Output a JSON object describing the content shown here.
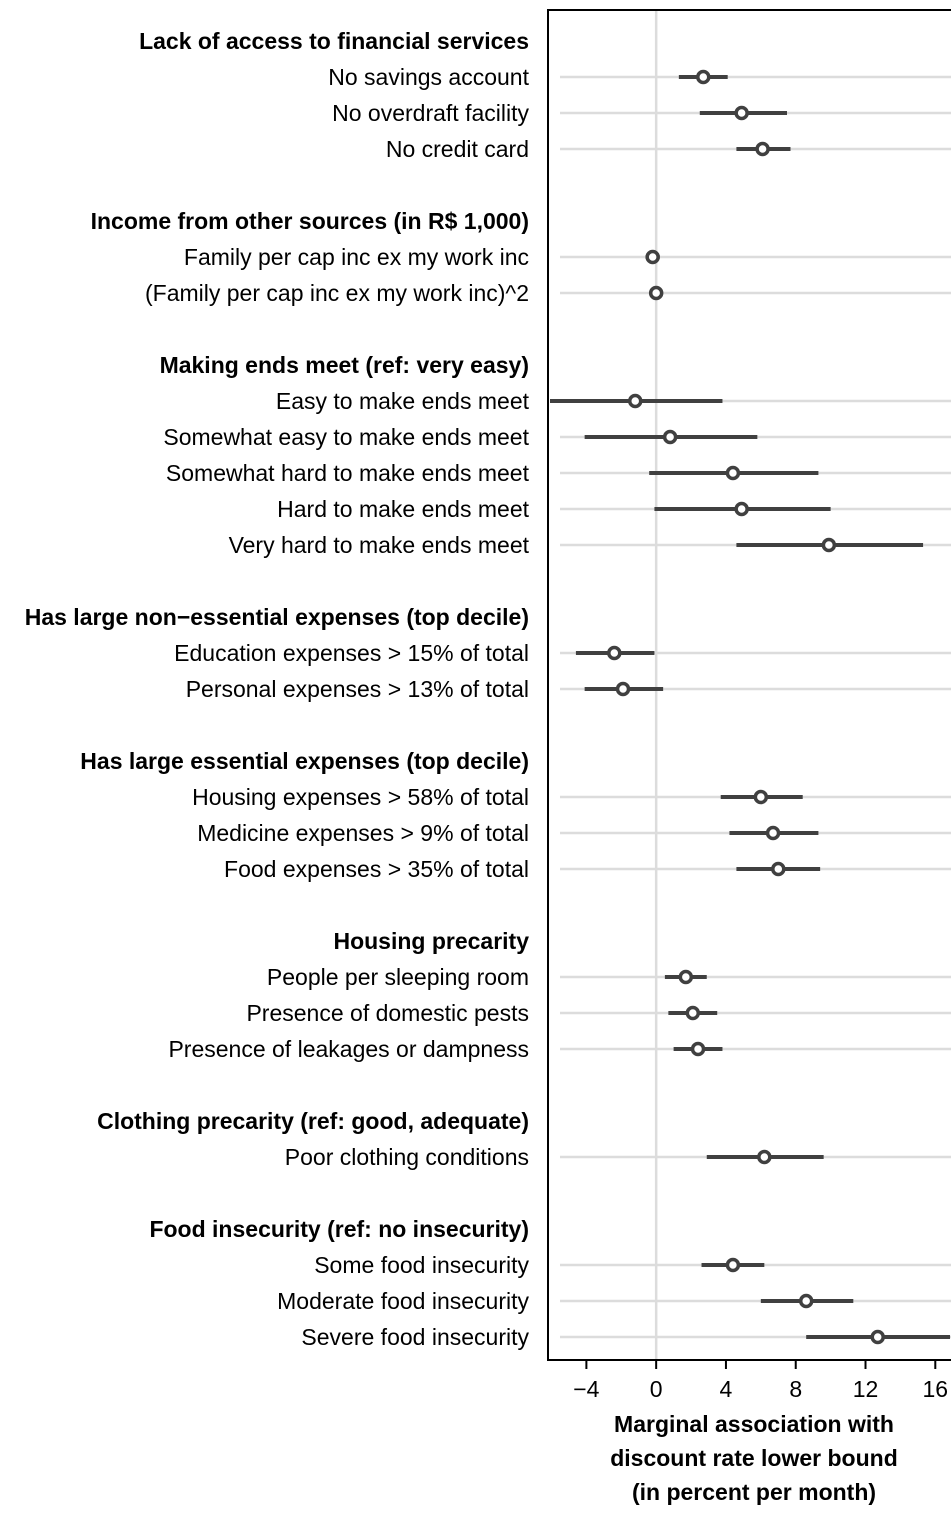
{
  "chart_data": {
    "type": "scatter",
    "subtype": "coefficient-plot-with-confidence-intervals",
    "xlabel": [
      "Marginal association with",
      "discount rate lower bound",
      "(in percent per month)"
    ],
    "xticks": [
      -4,
      0,
      4,
      8,
      12,
      16
    ],
    "tick_labels": [
      "−4",
      "0",
      "4",
      "8",
      "12",
      "16"
    ],
    "xlim": [
      -6.2,
      16.9
    ],
    "reference_line": 0,
    "grid": "horizontal per row",
    "colors": {
      "point": "#404040",
      "ci": "#404040",
      "grid": "#dcdcdc",
      "axis": "#000000"
    },
    "groups": [
      {
        "name": "Lack of access to financial services",
        "rows": [
          {
            "label": "No savings account",
            "estimate": 2.7,
            "ci": [
              1.3,
              4.1
            ]
          },
          {
            "label": "No overdraft facility",
            "estimate": 4.9,
            "ci": [
              2.5,
              7.5
            ]
          },
          {
            "label": "No credit card",
            "estimate": 6.1,
            "ci": [
              4.6,
              7.7
            ]
          }
        ]
      },
      {
        "name": "Income from other sources (in R$ 1,000)",
        "rows": [
          {
            "label": "Family per cap inc ex my work inc",
            "estimate": -0.2,
            "ci": [
              -0.6,
              0.2
            ]
          },
          {
            "label": "(Family per cap inc ex my work inc)^2",
            "estimate": 0.0,
            "ci": [
              -0.1,
              0.1
            ]
          }
        ]
      },
      {
        "name": "Making ends meet (ref: very easy)",
        "rows": [
          {
            "label": "Easy to make ends meet",
            "estimate": -1.2,
            "ci": [
              -6.1,
              3.8
            ]
          },
          {
            "label": "Somewhat easy to make ends meet",
            "estimate": 0.8,
            "ci": [
              -4.1,
              5.8
            ]
          },
          {
            "label": "Somewhat hard to make ends meet",
            "estimate": 4.4,
            "ci": [
              -0.4,
              9.3
            ]
          },
          {
            "label": "Hard to make ends meet",
            "estimate": 4.9,
            "ci": [
              -0.1,
              10.0
            ]
          },
          {
            "label": "Very hard to make ends meet",
            "estimate": 9.9,
            "ci": [
              4.6,
              15.3
            ]
          }
        ]
      },
      {
        "name": "Has large non−essential expenses (top decile)",
        "rows": [
          {
            "label": "Education expenses > 15% of total",
            "estimate": -2.4,
            "ci": [
              -4.6,
              -0.1
            ]
          },
          {
            "label": "Personal expenses > 13% of total",
            "estimate": -1.9,
            "ci": [
              -4.1,
              0.4
            ]
          }
        ]
      },
      {
        "name": "Has large essential expenses (top decile)",
        "rows": [
          {
            "label": "Housing expenses > 58% of total",
            "estimate": 6.0,
            "ci": [
              3.7,
              8.4
            ]
          },
          {
            "label": "Medicine expenses > 9% of total",
            "estimate": 6.7,
            "ci": [
              4.2,
              9.3
            ]
          },
          {
            "label": "Food expenses > 35% of total",
            "estimate": 7.0,
            "ci": [
              4.6,
              9.4
            ]
          }
        ]
      },
      {
        "name": "Housing precarity",
        "rows": [
          {
            "label": "People per sleeping room",
            "estimate": 1.7,
            "ci": [
              0.5,
              2.9
            ]
          },
          {
            "label": "Presence of domestic pests",
            "estimate": 2.1,
            "ci": [
              0.7,
              3.5
            ]
          },
          {
            "label": "Presence of leakages or dampness",
            "estimate": 2.4,
            "ci": [
              1.0,
              3.8
            ]
          }
        ]
      },
      {
        "name": "Clothing precarity (ref: good, adequate)",
        "rows": [
          {
            "label": "Poor clothing conditions",
            "estimate": 6.2,
            "ci": [
              2.9,
              9.6
            ]
          }
        ]
      },
      {
        "name": "Food insecurity (ref: no insecurity)",
        "rows": [
          {
            "label": "Some food insecurity",
            "estimate": 4.4,
            "ci": [
              2.6,
              6.2
            ]
          },
          {
            "label": "Moderate food insecurity",
            "estimate": 8.6,
            "ci": [
              6.0,
              11.3
            ]
          },
          {
            "label": "Severe food insecurity",
            "estimate": 12.7,
            "ci": [
              8.6,
              16.9
            ]
          }
        ]
      }
    ]
  }
}
